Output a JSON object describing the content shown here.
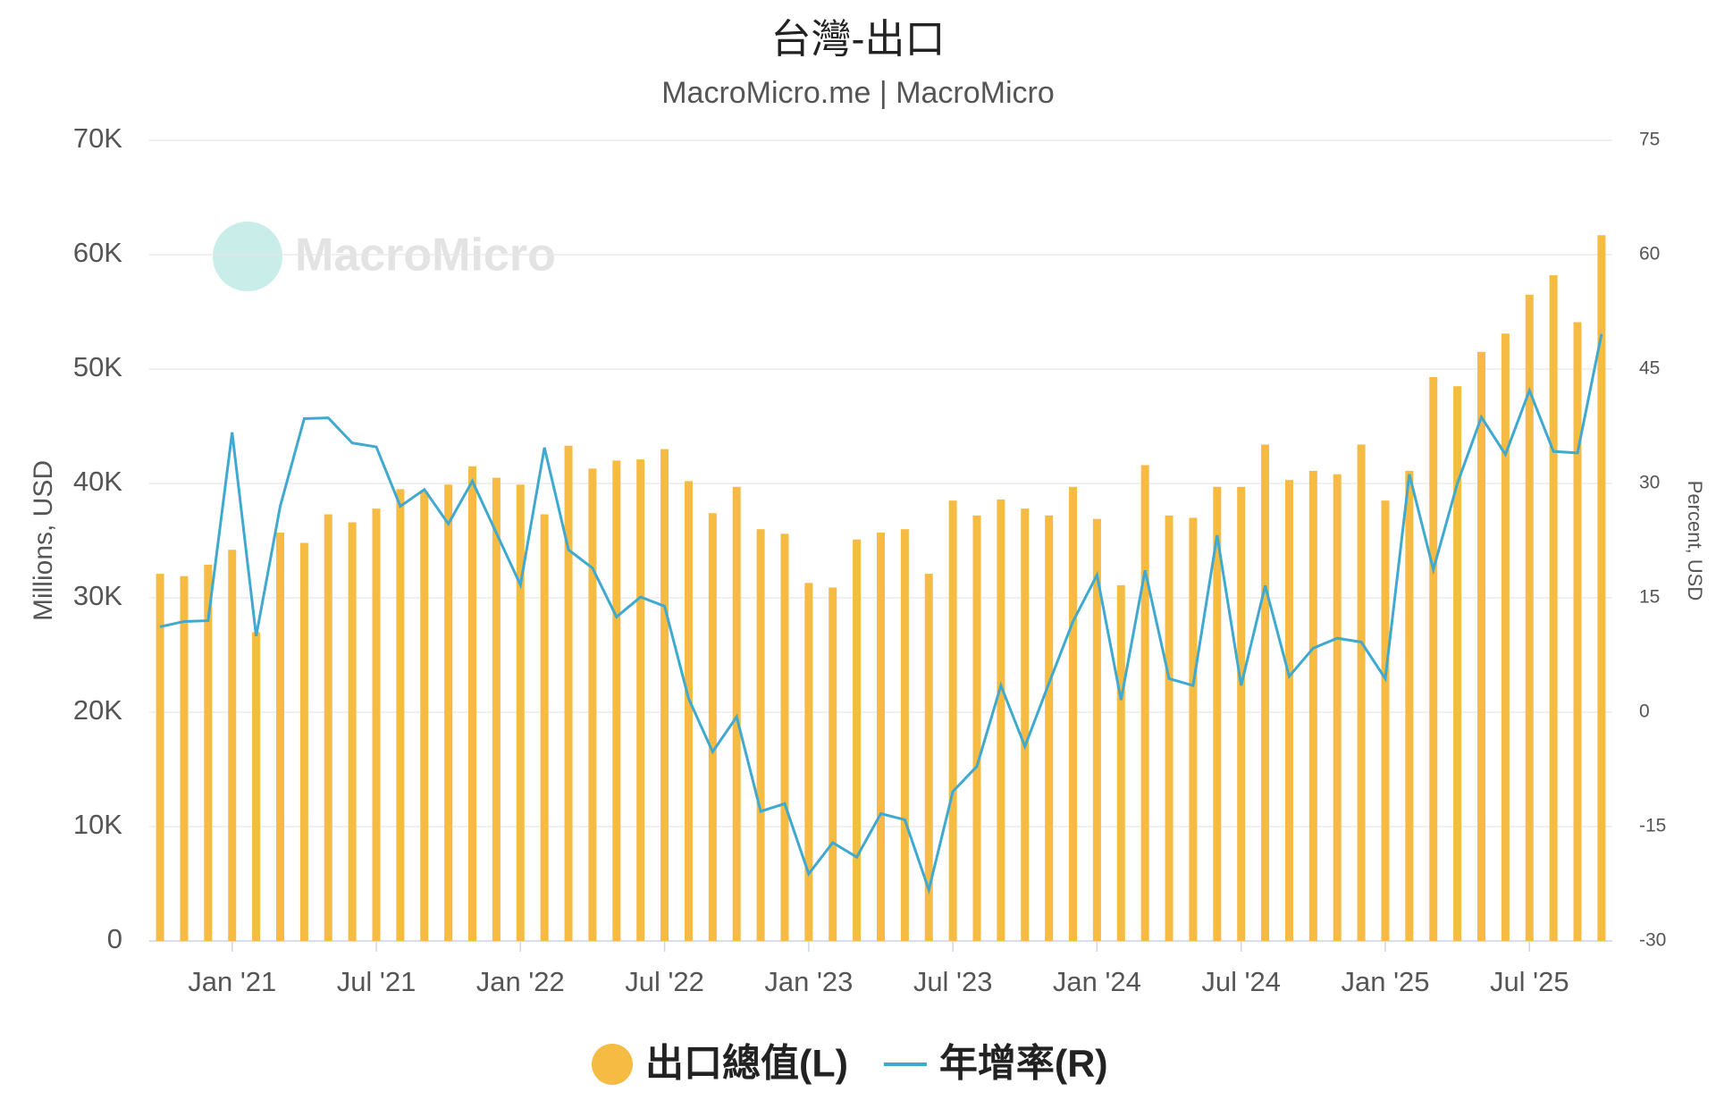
{
  "chart_data": {
    "type": "bar-line",
    "title": "台灣-出口",
    "subtitle": "MacroMicro.me | MacroMicro",
    "watermark": "MacroMicro",
    "y_label": "Millions, USD",
    "y2_label": "Percent, USD",
    "categories": [
      null,
      null,
      null,
      "Jan '21",
      null,
      null,
      null,
      null,
      null,
      "Jul '21",
      null,
      null,
      null,
      null,
      null,
      "Jan '22",
      null,
      null,
      null,
      null,
      null,
      "Jul '22",
      null,
      null,
      null,
      null,
      null,
      "Jan '23",
      null,
      null,
      null,
      null,
      null,
      "Jul '23",
      null,
      null,
      null,
      null,
      null,
      "Jan '24",
      null,
      null,
      null,
      null,
      null,
      "Jul '24",
      null,
      null,
      null,
      null,
      null,
      "Jan '25",
      null,
      null,
      null,
      null,
      null,
      "Jul '25",
      null,
      null,
      null
    ],
    "series": [
      {
        "name": "出口總值(L)",
        "color": "#f5bb42",
        "type": "bar",
        "values": [
          32100,
          31900,
          32900,
          34200,
          27000,
          35700,
          34800,
          37300,
          36600,
          37800,
          39500,
          39300,
          39900,
          41500,
          40500,
          39900,
          37300,
          43300,
          41300,
          42000,
          42100,
          43000,
          40200,
          37400,
          39700,
          36000,
          35600,
          31300,
          30900,
          35100,
          35700,
          36000,
          32100,
          38500,
          37200,
          38600,
          37800,
          37200,
          39700,
          36900,
          31100,
          41600,
          37200,
          37000,
          39700,
          39700,
          43400,
          40300,
          41100,
          40800,
          43400,
          38500,
          41100,
          49300,
          48500,
          51500,
          53100,
          56500,
          58200,
          54100,
          61700
        ]
      },
      {
        "name": "年增率(R)",
        "color": "#3fa9cf",
        "type": "line",
        "axis": "y2",
        "values": [
          11.2,
          11.9,
          12.0,
          36.7,
          10.0,
          27.0,
          38.5,
          38.6,
          35.3,
          34.8,
          27.0,
          29.2,
          24.7,
          30.3,
          23.5,
          16.7,
          34.7,
          21.3,
          18.9,
          12.5,
          15.1,
          13.9,
          1.8,
          -5.2,
          -0.6,
          -13.0,
          -12.0,
          -21.2,
          -17.1,
          -19.0,
          -13.3,
          -14.1,
          -23.3,
          -10.4,
          -7.1,
          3.5,
          -4.5,
          3.8,
          11.9,
          18.0,
          1.6,
          18.6,
          4.4,
          3.5,
          23.2,
          3.5,
          16.6,
          4.7,
          8.4,
          9.7,
          9.2,
          4.4,
          31.2,
          18.7,
          30.0,
          38.7,
          33.8,
          42.2,
          34.2,
          34.0,
          49.6
        ]
      }
    ],
    "ylim": [
      0,
      70000
    ],
    "yticks": [
      0,
      {
        "value": 10000,
        "label": "10K"
      },
      {
        "value": 20000,
        "label": "20K"
      },
      {
        "value": 30000,
        "label": "30K"
      },
      {
        "value": 40000,
        "label": "40K"
      },
      {
        "value": 50000,
        "label": "50K"
      },
      {
        "value": 60000,
        "label": "60K"
      },
      {
        "value": 70000,
        "label": "70K"
      }
    ],
    "y2lim": [
      -30,
      75
    ],
    "y2ticks": [
      -30,
      -15,
      0,
      15,
      30,
      45,
      60,
      75
    ],
    "grid": true
  }
}
